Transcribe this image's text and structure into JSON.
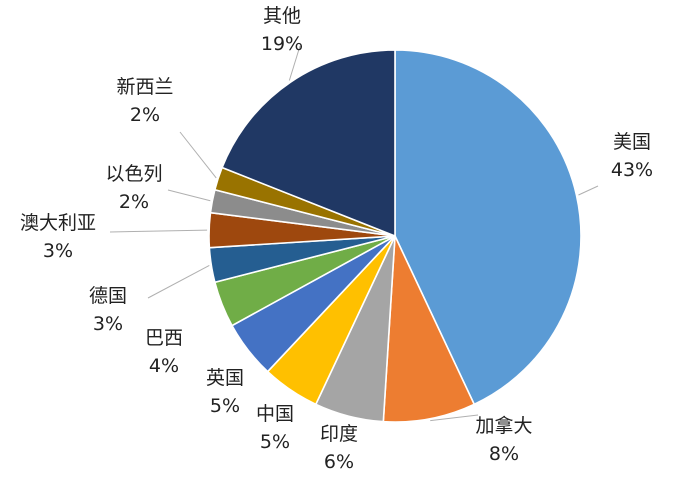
{
  "chart_data": {
    "type": "pie",
    "title": "",
    "legend": "none",
    "slices": [
      {
        "label": "美国",
        "value": 43,
        "value_label": "43%",
        "color": "#5b9bd5"
      },
      {
        "label": "加拿大",
        "value": 8,
        "value_label": "8%",
        "color": "#ed7d31"
      },
      {
        "label": "印度",
        "value": 6,
        "value_label": "6%",
        "color": "#a5a5a5"
      },
      {
        "label": "中国",
        "value": 5,
        "value_label": "5%",
        "color": "#ffc000"
      },
      {
        "label": "英国",
        "value": 5,
        "value_label": "5%",
        "color": "#4472c4"
      },
      {
        "label": "巴西",
        "value": 4,
        "value_label": "4%",
        "color": "#70ad47"
      },
      {
        "label": "德国",
        "value": 3,
        "value_label": "3%",
        "color": "#255e91"
      },
      {
        "label": "澳大利亚",
        "value": 3,
        "value_label": "3%",
        "color": "#9e480e"
      },
      {
        "label": "以色列",
        "value": 2,
        "value_label": "2%",
        "color": "#8c8c8c"
      },
      {
        "label": "新西兰",
        "value": 2,
        "value_label": "2%",
        "color": "#997300"
      },
      {
        "label": "其他",
        "value": 19,
        "value_label": "19%",
        "color": "#203864"
      }
    ]
  }
}
